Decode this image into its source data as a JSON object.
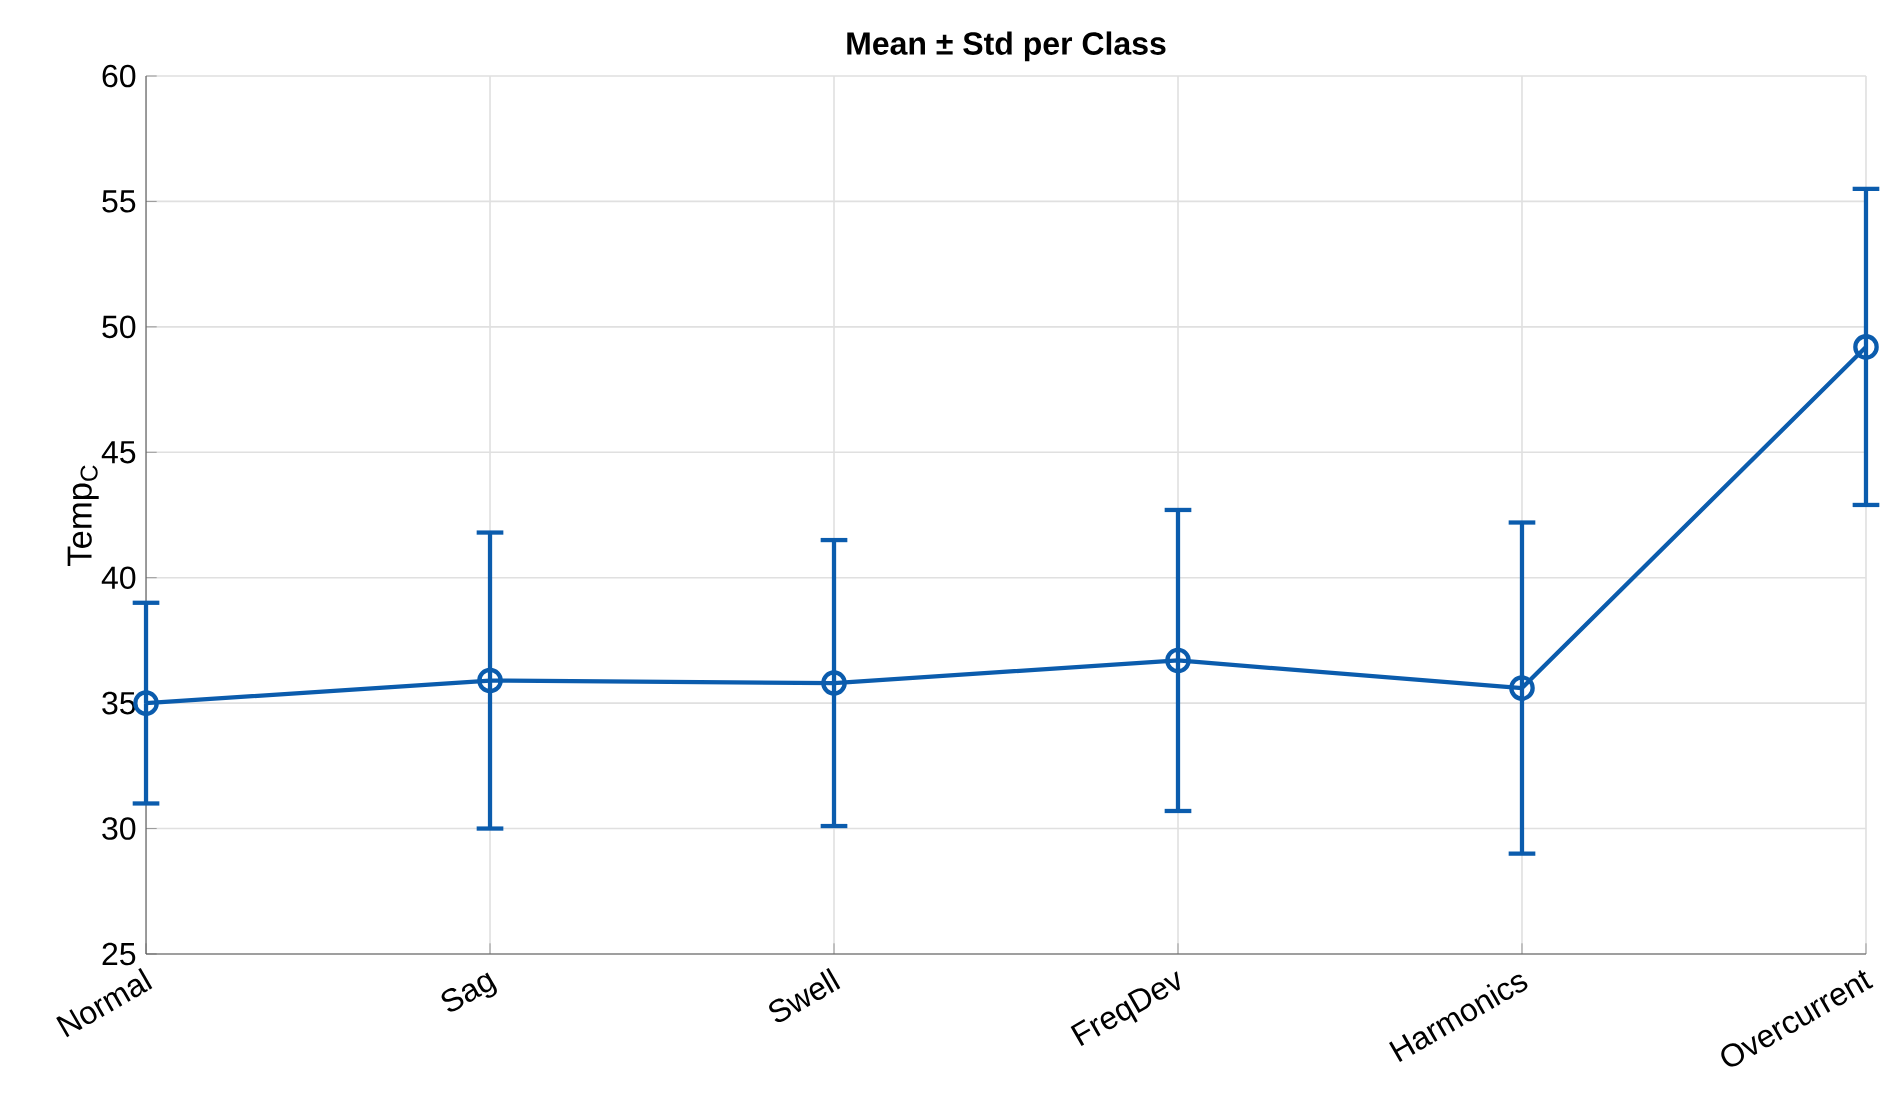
{
  "chart_data": {
    "type": "line",
    "title": "**Mean  ± Std per Class**",
    "ylabel": "Temp$_{C}$",
    "categories": [
      "Normal",
      "Sag",
      "Swell",
      "FreqDev",
      "Harmonics",
      "Overcurrent"
    ],
    "series": [
      {
        "color": "#0b5cad",
        "values": [
          35.0,
          35.9,
          35.8,
          36.7,
          35.6,
          49.2
        ],
        "errors": [
          4.0,
          5.9,
          5.7,
          6.0,
          6.6,
          6.3
        ]
      }
    ],
    "ylim": [
      25,
      60
    ],
    "yticks": [
      25,
      30,
      35,
      40,
      45,
      50,
      55,
      60
    ],
    "grid": true,
    "marker": "circle",
    "line_style": "solid"
  }
}
